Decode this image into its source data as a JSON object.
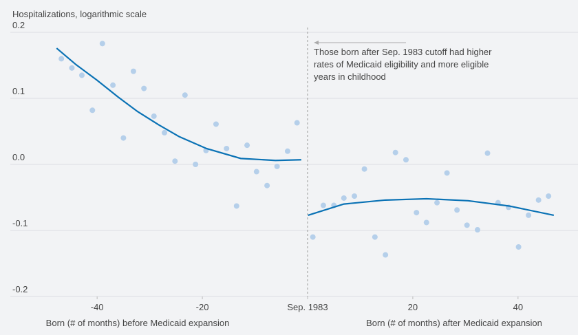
{
  "chart_data": {
    "type": "scatter",
    "y_label": "Hospitalizations, logarithmic scale",
    "x_label_left": "Born (# of months) before Medicaid expansion",
    "x_label_right": "Born (# of months) after Medicaid expansion",
    "annotation": [
      "Those born after Sep. 1983 cutoff had higher",
      "rates of Medicaid eligibility and more eligible",
      "years in childhood"
    ],
    "cutoff_x": 0,
    "xlim": [
      -56.5,
      51.4
    ],
    "ylim": [
      -0.2,
      0.2
    ],
    "xticks": [
      -40,
      -20,
      {
        "value": 0,
        "label": "Sep. 1983"
      },
      20,
      40
    ],
    "yticks": [
      {
        "value": -0.2,
        "label": "-0.2"
      },
      {
        "value": -0.1,
        "label": "-0.1"
      },
      {
        "value": 0,
        "label": "0.0"
      },
      0.1,
      0.2
    ],
    "grid": true,
    "series": [
      {
        "type": "scatter",
        "color": "#b5cfea",
        "x": [
          -46.8,
          -44.8,
          -42.9,
          -40.9,
          -39.0,
          -37.0,
          -35.0,
          -33.1,
          -31.1,
          -29.2,
          -27.2,
          -25.2,
          -23.3,
          -21.3,
          -19.3,
          -17.4,
          -15.4,
          -13.5,
          -11.5,
          -9.7,
          -7.7,
          -5.8,
          -3.8,
          -2.0,
          1.0,
          3.0,
          5.0,
          6.9,
          8.9,
          10.8,
          12.8,
          14.8,
          16.7,
          18.7,
          20.7,
          22.6,
          24.6,
          26.5,
          28.4,
          30.3,
          32.3,
          34.2,
          36.2,
          38.2,
          40.1,
          42.0,
          43.9,
          45.8
        ],
        "values": [
          0.16,
          0.146,
          0.135,
          0.082,
          0.183,
          0.12,
          0.04,
          0.141,
          0.115,
          0.073,
          0.048,
          0.005,
          0.105,
          0.0,
          0.021,
          0.061,
          0.024,
          -0.063,
          0.029,
          -0.011,
          -0.032,
          -0.003,
          0.02,
          0.063,
          -0.11,
          -0.062,
          -0.062,
          -0.051,
          -0.048,
          -0.007,
          -0.11,
          -0.137,
          0.018,
          0.007,
          -0.073,
          -0.088,
          -0.058,
          -0.013,
          -0.069,
          -0.092,
          -0.099,
          0.017,
          -0.058,
          -0.065,
          -0.125,
          -0.077,
          -0.054,
          -0.048
        ]
      },
      {
        "type": "line",
        "color": "#0a72b5",
        "x": [
          -47.7,
          -44.0,
          -40.1,
          -36.0,
          -32.3,
          -28.3,
          -24.4,
          -19.2,
          -12.7,
          -6.1,
          -1.2
        ],
        "values": [
          0.176,
          0.151,
          0.128,
          0.102,
          0.08,
          0.06,
          0.042,
          0.024,
          0.009,
          0.006,
          0.007
        ]
      },
      {
        "type": "line",
        "color": "#0a72b5",
        "x": [
          0.1,
          6.9,
          14.8,
          22.6,
          30.5,
          38.3,
          46.8
        ],
        "values": [
          -0.077,
          -0.06,
          -0.054,
          -0.052,
          -0.055,
          -0.063,
          -0.077
        ]
      }
    ]
  }
}
